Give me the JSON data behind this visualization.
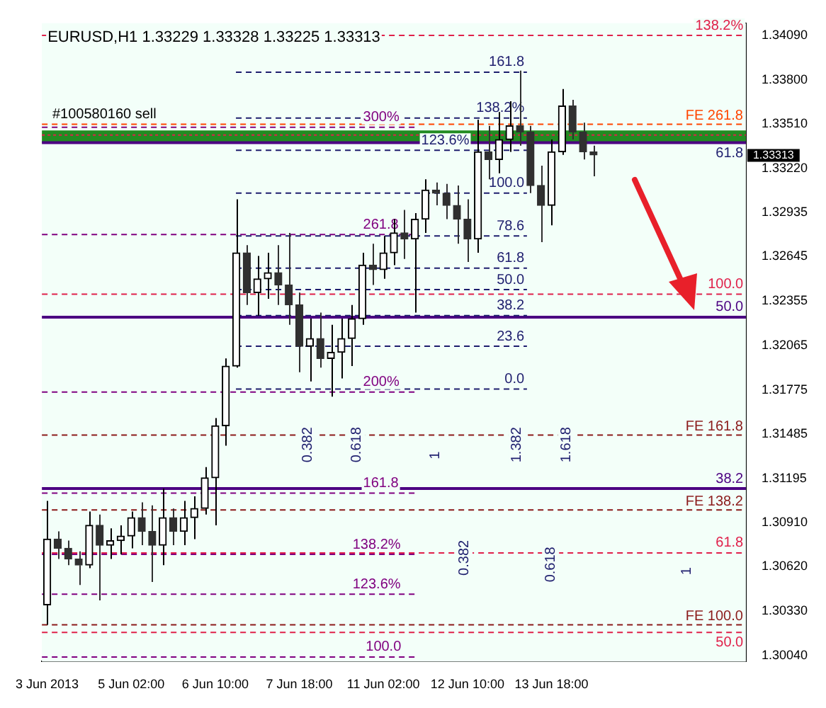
{
  "chart_data": {
    "type": "candlestick",
    "title": "EURUSD,H1 1.33229 1.33328 1.33225 1.33313",
    "colors": [
      "#000000",
      "#303030",
      "#303030",
      "#303030",
      "#000000",
      "#303030",
      "#000000",
      "#000000",
      "#000000",
      "#303030",
      "#303030",
      "#000000",
      "#303030",
      "#000000",
      "#000000",
      "#000000",
      "#000000",
      "#000000",
      "#000000",
      "#303030",
      "#000000",
      "#000000",
      "#303030",
      "#303030",
      "#303030",
      "#000000",
      "#303030",
      "#000000",
      "#000000",
      "#000000",
      "#000000",
      "#303030",
      "#000000",
      "#000000",
      "#303030",
      "#000000",
      "#000000",
      "#303030",
      "#303030",
      "#303030",
      "#303030",
      "#000000",
      "#303030",
      "#000000",
      "#000000",
      "#303030",
      "#303030",
      "#303030",
      "#000000",
      "#000000",
      "#303030",
      "#303030",
      "#303030",
      null,
      null,
      null,
      null,
      null,
      null,
      null,
      null,
      null,
      null,
      null,
      null,
      null,
      null
    ],
    "categories": [
      "3 Jun 2013",
      null,
      null,
      null,
      null,
      null,
      null,
      null,
      "5 Jun 02:00",
      null,
      null,
      null,
      null,
      null,
      null,
      null,
      "6 Jun 10:00",
      null,
      null,
      null,
      null,
      null,
      null,
      null,
      "7 Jun 18:00",
      null,
      null,
      null,
      null,
      null,
      null,
      null,
      "11 Jun 02:00",
      null,
      null,
      null,
      null,
      null,
      null,
      null,
      "12 Jun 10:00",
      null,
      null,
      null,
      null,
      null,
      null,
      null,
      "13 Jun 18:00",
      null,
      null,
      null,
      null,
      null,
      null,
      null,
      null,
      null,
      null,
      null,
      null,
      null,
      null,
      null,
      null,
      null,
      null
    ],
    "ohlc": [
      [
        1.3037,
        1.3105,
        1.3024,
        1.308
      ],
      [
        1.308,
        1.3085,
        1.3067,
        1.3074
      ],
      [
        1.3074,
        1.3079,
        1.3063,
        1.3067
      ],
      [
        1.3067,
        1.3072,
        1.305,
        1.3063
      ],
      [
        1.3063,
        1.3098,
        1.3061,
        1.3089
      ],
      [
        1.3089,
        1.3096,
        1.304,
        1.3076
      ],
      [
        1.3076,
        1.3087,
        1.3067,
        1.3079
      ],
      [
        1.3079,
        1.3089,
        1.307,
        1.3082
      ],
      [
        1.3082,
        1.3098,
        1.3074,
        1.3094
      ],
      [
        1.3094,
        1.3104,
        1.3076,
        1.3085
      ],
      [
        1.3085,
        1.3102,
        1.3052,
        1.3076
      ],
      [
        1.3076,
        1.3113,
        1.3063,
        1.3094
      ],
      [
        1.3094,
        1.31,
        1.3076,
        1.3085
      ],
      [
        1.3085,
        1.3105,
        1.3076,
        1.3094
      ],
      [
        1.3094,
        1.3108,
        1.308,
        1.31
      ],
      [
        1.31,
        1.3127,
        1.3096,
        1.312
      ],
      [
        1.312,
        1.3159,
        1.3089,
        1.3154
      ],
      [
        1.3154,
        1.3198,
        1.3141,
        1.3193
      ],
      [
        1.3193,
        1.3302,
        1.3192,
        1.3267
      ],
      [
        1.3267,
        1.3272,
        1.3233,
        1.3241
      ],
      [
        1.3241,
        1.3265,
        1.3226,
        1.325
      ],
      [
        1.325,
        1.3267,
        1.3237,
        1.3254
      ],
      [
        1.3254,
        1.3272,
        1.3233,
        1.3246
      ],
      [
        1.3246,
        1.328,
        1.322,
        1.3233
      ],
      [
        1.3233,
        1.3241,
        1.3189,
        1.3206
      ],
      [
        1.3206,
        1.3224,
        1.3183,
        1.3211
      ],
      [
        1.3211,
        1.3228,
        1.3192,
        1.3198
      ],
      [
        1.3198,
        1.322,
        1.3173,
        1.3202
      ],
      [
        1.3202,
        1.3224,
        1.3185,
        1.3211
      ],
      [
        1.3211,
        1.3233,
        1.3193,
        1.3224
      ],
      [
        1.3224,
        1.3267,
        1.322,
        1.3259
      ],
      [
        1.3259,
        1.3273,
        1.3246,
        1.3256
      ],
      [
        1.3256,
        1.3278,
        1.325,
        1.3267
      ],
      [
        1.3267,
        1.3289,
        1.3259,
        1.328
      ],
      [
        1.328,
        1.3295,
        1.3263,
        1.3276
      ],
      [
        1.3276,
        1.3293,
        1.3228,
        1.3289
      ],
      [
        1.3289,
        1.3315,
        1.328,
        1.3308
      ],
      [
        1.3308,
        1.3313,
        1.3298,
        1.3306
      ],
      [
        1.3306,
        1.3312,
        1.3289,
        1.3298
      ],
      [
        1.3298,
        1.3311,
        1.3273,
        1.3289
      ],
      [
        1.3289,
        1.3302,
        1.3261,
        1.3276
      ],
      [
        1.3276,
        1.3354,
        1.3267,
        1.3333
      ],
      [
        1.3333,
        1.335,
        1.3315,
        1.3328
      ],
      [
        1.3328,
        1.3359,
        1.3319,
        1.3341
      ],
      [
        1.3341,
        1.3366,
        1.3333,
        1.335
      ],
      [
        1.335,
        1.3386,
        1.3337,
        1.3346
      ],
      [
        1.3346,
        1.335,
        1.3306,
        1.3311
      ],
      [
        1.3311,
        1.3324,
        1.3274,
        1.3298
      ],
      [
        1.3298,
        1.3341,
        1.3285,
        1.3333
      ],
      [
        1.3333,
        1.3374,
        1.3331,
        1.3363
      ],
      [
        1.3363,
        1.3367,
        1.3341,
        1.3346
      ],
      [
        1.3346,
        1.3352,
        1.3328,
        1.3333
      ],
      [
        1.3333,
        1.3337,
        1.3317,
        1.3331
      ],
      null,
      null,
      null,
      null,
      null,
      null,
      null,
      null,
      null,
      null,
      null,
      null,
      null,
      null
    ],
    "ylim": [
      1.3,
      1.3417
    ],
    "yticks": [
      {
        "value": 1.3409,
        "label": "1.34090"
      },
      {
        "value": 1.338,
        "label": "1.33800"
      },
      {
        "value": 1.3351,
        "label": "1.33510"
      },
      {
        "value": 1.3322,
        "label": "1.33220"
      },
      1.32935,
      1.32645,
      1.32355,
      1.32065,
      1.31775,
      1.31485,
      1.31195,
      {
        "value": 1.3091,
        "label": "1.30910"
      },
      {
        "value": 1.3062,
        "label": "1.30620"
      },
      {
        "value": 1.3033,
        "label": "1.30330"
      },
      {
        "value": 1.3004,
        "label": "1.30040"
      }
    ],
    "bands": [
      {
        "axis": "y",
        "from": 1.3339,
        "to": 1.3347,
        "color": "#228b22"
      }
    ],
    "ref_lines": [
      {
        "axis": "y",
        "value": 1.3409,
        "color": "#e0204a",
        "line_style": "dashed"
      },
      {
        "axis": "y",
        "value": 1.3351,
        "label": "FE 261.8",
        "color": "#ff4500",
        "line_style": "dashed"
      },
      {
        "axis": "y",
        "value": 1.3344,
        "color": "#e0204a",
        "line_style": "dotted"
      },
      {
        "axis": "y",
        "value": 1.3339,
        "color": "#4b0082",
        "line_style": "solid"
      },
      {
        "axis": "y",
        "value": 1.324,
        "color": "#e0204a",
        "line_style": "dashed"
      },
      {
        "axis": "y",
        "value": 1.3225,
        "color": "#4b0082",
        "line_style": "solid"
      },
      {
        "axis": "y",
        "value": 1.3148,
        "label": "FE 161.8",
        "color": "#8b1a1a",
        "line_style": "dashed"
      },
      {
        "axis": "y",
        "value": 1.3113,
        "color": "#4b0082",
        "line_style": "solid"
      },
      {
        "axis": "y",
        "value": 1.3099,
        "label": "FE 138.2",
        "color": "#8b1a1a",
        "line_style": "dashed"
      },
      {
        "axis": "y",
        "value": 1.3071,
        "color": "#e0204a",
        "line_style": "dashed"
      },
      {
        "axis": "y",
        "value": 1.3024,
        "label": "FE 100.0",
        "color": "#8b1a1a",
        "line_style": "dashed"
      },
      {
        "axis": "y",
        "value": 1.3019,
        "color": "#e0204a",
        "line_style": "dashed"
      },
      {
        "axis": "y",
        "value": 1.3349,
        "color": "#800080",
        "line_style": "dashed"
      },
      {
        "axis": "y",
        "value": 1.3279,
        "color": "#800080",
        "line_style": "dashed"
      },
      {
        "axis": "y",
        "value": 1.3176,
        "color": "#800080",
        "line_style": "dashed"
      },
      {
        "axis": "y",
        "value": 1.311,
        "color": "#800080",
        "line_style": "dashed"
      },
      {
        "axis": "y",
        "value": 1.307,
        "color": "#800080",
        "line_style": "dashed"
      },
      {
        "axis": "y",
        "value": 1.3044,
        "color": "#800080",
        "line_style": "dashed"
      },
      {
        "axis": "y",
        "value": 1.3003,
        "color": "#800080",
        "line_style": "dashed"
      },
      {
        "axis": "y",
        "value": 1.3385,
        "color": "#1e1e6e",
        "line_style": "dashed"
      },
      {
        "axis": "y",
        "value": 1.3355,
        "color": "#1e1e6e",
        "line_style": "dashed"
      },
      {
        "axis": "y",
        "value": 1.3334,
        "color": "#1e1e6e",
        "line_style": "dashed"
      },
      {
        "axis": "y",
        "value": 1.3306,
        "color": "#1e1e6e",
        "line_style": "dashed"
      },
      {
        "axis": "y",
        "value": 1.3278,
        "color": "#1e1e6e",
        "line_style": "dashed"
      },
      {
        "axis": "y",
        "value": 1.3257,
        "color": "#1e1e6e",
        "line_style": "dashed"
      },
      {
        "axis": "y",
        "value": 1.3243,
        "color": "#1e1e6e",
        "line_style": "dashed"
      },
      {
        "axis": "y",
        "value": 1.3226,
        "color": "#1e1e6e",
        "line_style": "dashed"
      },
      {
        "axis": "y",
        "value": 1.3206,
        "color": "#1e1e6e",
        "line_style": "dashed"
      },
      {
        "axis": "y",
        "value": 1.3178,
        "color": "#1e1e6e",
        "line_style": "dashed"
      }
    ],
    "annotations": [
      {
        "text": "#100580160 sell",
        "y": 1.3351
      },
      {
        "text": "138.2%",
        "y": 1.3409
      },
      {
        "text": "61.8",
        "y": 1.3344
      },
      {
        "text": "100.0",
        "y": 1.324
      },
      {
        "text": "50.0",
        "y": 1.3225
      },
      {
        "text": "38.2",
        "y": 1.3113
      },
      {
        "text": "61.8",
        "y": 1.3071
      },
      {
        "text": "50.0",
        "y": 1.3019
      },
      {
        "text": "300%",
        "y": 1.3349
      },
      {
        "text": "261.8",
        "y": 1.3279
      },
      {
        "text": "200%",
        "y": 1.3176
      },
      {
        "text": "161.8",
        "y": 1.311
      },
      {
        "text": "138.2%",
        "y": 1.307
      },
      {
        "text": "123.6%",
        "y": 1.3044
      },
      {
        "text": "100.0",
        "y": 1.3003
      },
      {
        "text": "161.8",
        "y": 1.3385
      },
      {
        "text": "138.2%",
        "y": 1.3355
      },
      {
        "text": "123.6%",
        "y": 1.3334
      },
      {
        "text": "100.0",
        "y": 1.3306
      },
      {
        "text": "78.6",
        "y": 1.3278
      },
      {
        "text": "61.8",
        "y": 1.3257
      },
      {
        "text": "50.0",
        "y": 1.3243
      },
      {
        "text": "38.2",
        "y": 1.3226
      },
      {
        "text": "23.6",
        "y": 1.3206
      },
      {
        "text": "0.0",
        "y": 1.3178
      },
      "0.382",
      "0.618",
      "1",
      "1.382",
      "1.618",
      "0.382",
      "0.618",
      "1",
      "1.33313"
    ]
  }
}
